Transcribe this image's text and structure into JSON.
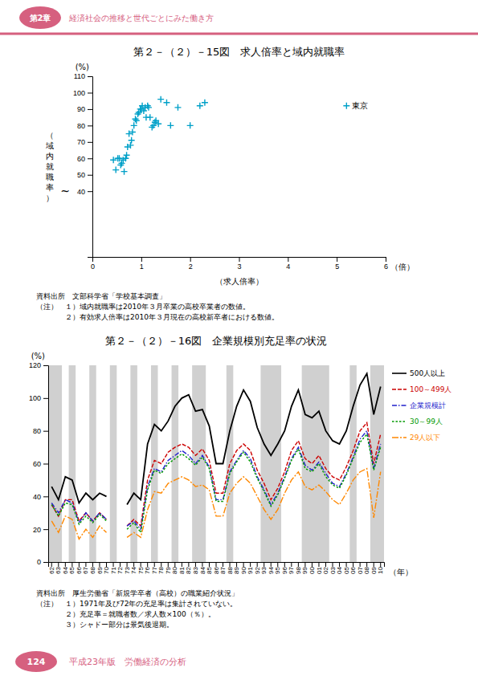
{
  "chapter_label": "第2章",
  "chapter_text": "経済社会の推移と世代ごとにみた働き方",
  "page_number": "124",
  "page_text": "平成23年版　労働経済の分析",
  "chart_data": [
    {
      "type": "scatter",
      "title": "第２－（２）－15図　求人倍率と域内就職率",
      "xlabel": "（求人倍率）",
      "ylabel": "（域内就職率）",
      "x_unit": "（倍）",
      "y_unit": "(%)",
      "x": [
        0.43,
        0.48,
        0.52,
        0.55,
        0.58,
        0.6,
        0.63,
        0.65,
        0.68,
        0.7,
        0.72,
        0.75,
        0.78,
        0.8,
        0.82,
        0.85,
        0.88,
        0.9,
        0.93,
        0.95,
        0.98,
        1.0,
        1.02,
        1.05,
        1.08,
        1.1,
        1.13,
        1.15,
        1.18,
        1.22,
        1.25,
        1.28,
        1.3,
        1.35,
        1.4,
        1.52,
        1.6,
        1.75,
        2.0,
        2.2,
        2.3,
        5.2
      ],
      "values": [
        59,
        53,
        60,
        60,
        56,
        57,
        59,
        52,
        60,
        62,
        67,
        75,
        68,
        71,
        76,
        80,
        84,
        83,
        87,
        88,
        90,
        90,
        92,
        89,
        91,
        85,
        92,
        91,
        85,
        79,
        80,
        82,
        83,
        81,
        96,
        94,
        80,
        91,
        80,
        92,
        94,
        92
      ],
      "color": "#00a0c8",
      "marker": "plus",
      "xlim": [
        0,
        6
      ],
      "xticks": [
        0,
        1,
        2,
        3,
        4,
        5,
        6
      ],
      "ylim": [
        0,
        110
      ],
      "yticks": [
        40,
        50,
        60,
        70,
        80,
        90,
        100,
        110
      ],
      "grid": false,
      "annotations": [
        {
          "text": "東京",
          "x": 5.2,
          "y": 92
        },
        {
          "text": "~",
          "y": 40
        }
      ],
      "notes": [
        "資料出所　文部科学省「学校基本調査」",
        "（注）　１）域内就職率は2010年３月卒業の高校卒業者の数値。",
        "　　　　２）有効求人倍率は2010年３月現在の高校新卒者における数値。"
      ]
    },
    {
      "type": "line",
      "title": "第２－（２）－16図　企業規模別充足率の状況",
      "x_unit": "（年）",
      "y_unit": "(%)",
      "categories": [
        "62",
        "63",
        "64",
        "65",
        "66",
        "67",
        "68",
        "69",
        "70",
        "71",
        "72",
        "73",
        "74",
        "75",
        "76",
        "77",
        "78",
        "79",
        "80",
        "81",
        "82",
        "83",
        "84",
        "85",
        "86",
        "87",
        "88",
        "89",
        "90",
        "91",
        "92",
        "93",
        "94",
        "95",
        "96",
        "97",
        "98",
        "99",
        "00",
        "01",
        "02",
        "03",
        "04",
        "05",
        "06",
        "07",
        "08",
        "09",
        "10"
      ],
      "series": [
        {
          "name": "500人以上",
          "color": "#000000",
          "line_style": "solid",
          "values": [
            46,
            38,
            52,
            50,
            36,
            42,
            38,
            42,
            40,
            null,
            null,
            35,
            42,
            38,
            72,
            84,
            80,
            86,
            95,
            100,
            102,
            92,
            93,
            83,
            60,
            60,
            80,
            95,
            105,
            98,
            82,
            72,
            65,
            72,
            80,
            95,
            105,
            90,
            88,
            92,
            80,
            74,
            72,
            80,
            95,
            108,
            115,
            90,
            107
          ]
        },
        {
          "name": "100～499人",
          "color": "#cc0000",
          "line_style": "dashed",
          "values": [
            35,
            28,
            38,
            38,
            25,
            30,
            25,
            30,
            26,
            null,
            null,
            22,
            26,
            22,
            50,
            62,
            60,
            67,
            70,
            72,
            70,
            65,
            69,
            62,
            42,
            42,
            60,
            68,
            72,
            68,
            56,
            48,
            38,
            45,
            55,
            68,
            74,
            63,
            60,
            65,
            57,
            52,
            50,
            58,
            68,
            80,
            85,
            60,
            78
          ]
        },
        {
          "name": "企業規模計",
          "color": "#2222cc",
          "line_style": "dashdot",
          "values": [
            36,
            30,
            38,
            36,
            24,
            30,
            25,
            30,
            26,
            null,
            null,
            22,
            25,
            20,
            46,
            57,
            55,
            62,
            65,
            68,
            65,
            60,
            65,
            58,
            38,
            38,
            55,
            62,
            68,
            63,
            52,
            44,
            35,
            42,
            52,
            63,
            70,
            59,
            56,
            61,
            54,
            48,
            46,
            54,
            64,
            75,
            80,
            57,
            72
          ]
        },
        {
          "name": "30～99人",
          "color": "#009900",
          "line_style": "dotted",
          "values": [
            35,
            28,
            36,
            35,
            23,
            28,
            24,
            29,
            25,
            null,
            null,
            20,
            24,
            18,
            44,
            56,
            54,
            60,
            63,
            66,
            63,
            59,
            64,
            57,
            37,
            37,
            54,
            61,
            67,
            61,
            51,
            43,
            34,
            41,
            51,
            62,
            69,
            57,
            55,
            60,
            52,
            47,
            45,
            53,
            63,
            73,
            78,
            56,
            70
          ]
        },
        {
          "name": "29人以下",
          "color": "#ff8800",
          "line_style": "longdashdot",
          "values": [
            25,
            18,
            28,
            26,
            14,
            20,
            15,
            22,
            18,
            null,
            null,
            15,
            18,
            15,
            32,
            43,
            42,
            48,
            50,
            52,
            50,
            46,
            47,
            44,
            28,
            28,
            42,
            48,
            52,
            48,
            40,
            32,
            26,
            32,
            42,
            50,
            55,
            46,
            44,
            47,
            43,
            38,
            35,
            42,
            50,
            55,
            57,
            27,
            55
          ]
        }
      ],
      "ylim": [
        0,
        120
      ],
      "yticks": [
        0,
        20,
        40,
        60,
        80,
        100,
        120
      ],
      "grid": false,
      "legend": "right",
      "shaded": {
        "color": "#c8c8c8",
        "ranges": [
          {
            "start": "62",
            "end": "63"
          },
          {
            "start": "65",
            "end": "65"
          },
          {
            "start": "68",
            "end": "68"
          },
          {
            "start": "71",
            "end": "71"
          },
          {
            "start": "74",
            "end": "74"
          },
          {
            "start": "77",
            "end": "77"
          },
          {
            "start": "80",
            "end": "80"
          },
          {
            "start": "83",
            "end": "84"
          },
          {
            "start": "88",
            "end": "88"
          },
          {
            "start": "93",
            "end": "95"
          },
          {
            "start": "99",
            "end": "02"
          },
          {
            "start": "06",
            "end": "06"
          },
          {
            "start": "09",
            "end": "10"
          }
        ]
      },
      "notes": [
        "資料出所　厚生労働省「新規学卒者（高校）の職業紹介状況」",
        "（注）　１）1971年及び72年の充足率は集計されていない。",
        "　　　　２）充足率＝就職者数／求人数×100（％）。",
        "　　　　３）シャドー部分は景気後退期。"
      ]
    }
  ]
}
